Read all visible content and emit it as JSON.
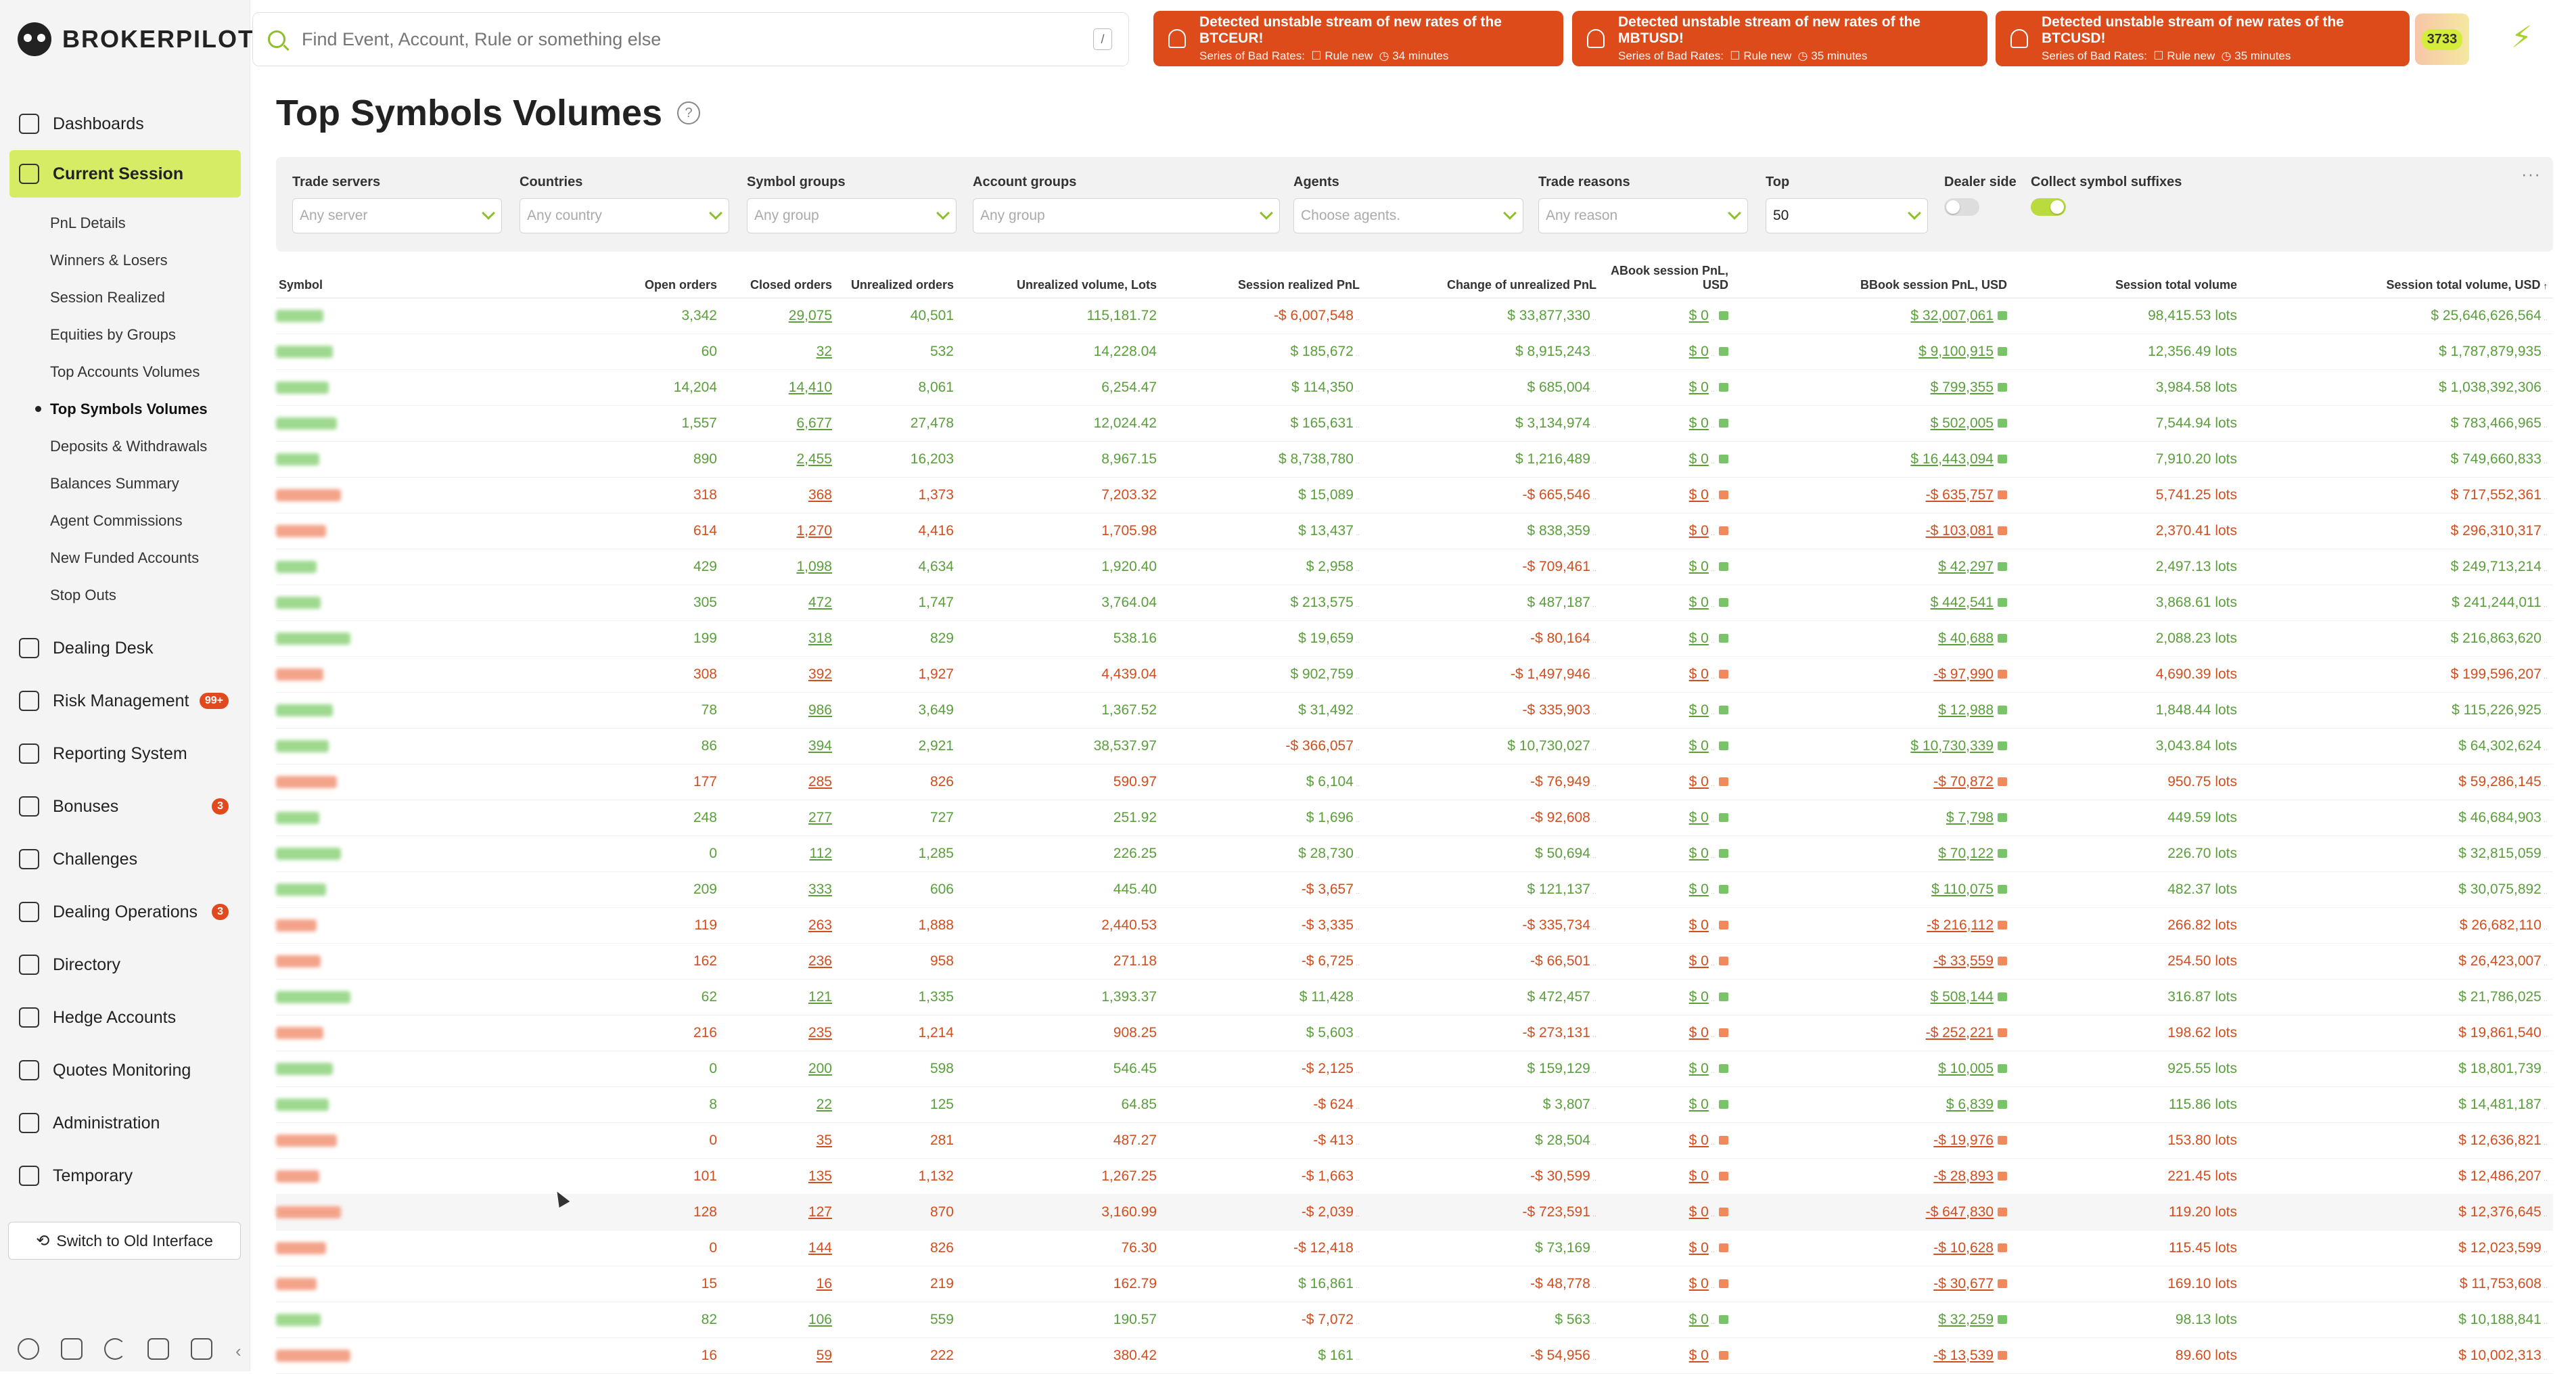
{
  "app": {
    "name": "BROKERPILOT"
  },
  "search": {
    "placeholder": "Find Event, Account, Rule or something else",
    "shortcut": "/"
  },
  "alerts": [
    {
      "title": "Detected unstable stream of new rates of the BTCEUR!",
      "series_label": "Series of Bad Rates:",
      "rule": "Rule new",
      "time": "34 minutes"
    },
    {
      "title": "Detected unstable stream of new rates of the MBTUSD!",
      "series_label": "Series of Bad Rates:",
      "rule": "Rule new",
      "time": "35 minutes"
    },
    {
      "title": "Detected unstable stream of new rates of the BTCUSD!",
      "series_label": "Series of Bad Rates:",
      "rule": "Rule new",
      "time": "35 minutes"
    }
  ],
  "counter": "3733",
  "nav": {
    "items": [
      {
        "label": "Dashboards",
        "icon": "dashboard-icon"
      },
      {
        "label": "Current Session",
        "icon": "session-icon",
        "active": true
      },
      {
        "label": "Dealing Desk",
        "icon": "desk-icon"
      },
      {
        "label": "Risk Management",
        "icon": "risk-icon",
        "badge": "99+"
      },
      {
        "label": "Reporting System",
        "icon": "report-icon"
      },
      {
        "label": "Bonuses",
        "icon": "bonus-icon",
        "badge": "3"
      },
      {
        "label": "Challenges",
        "icon": "flag-icon"
      },
      {
        "label": "Dealing Operations",
        "icon": "operations-icon",
        "badge": "3"
      },
      {
        "label": "Directory",
        "icon": "directory-icon"
      },
      {
        "label": "Hedge Accounts",
        "icon": "hedge-icon"
      },
      {
        "label": "Quotes Monitoring",
        "icon": "quotes-icon"
      },
      {
        "label": "Administration",
        "icon": "admin-icon"
      },
      {
        "label": "Temporary",
        "icon": "temporary-icon"
      }
    ],
    "subitems": [
      "PnL Details",
      "Winners & Losers",
      "Session Realized",
      "Equities by Groups",
      "Top Accounts Volumes",
      "Top Symbols Volumes",
      "Deposits & Withdrawals",
      "Balances Summary",
      "Agent Commissions",
      "New Funded Accounts",
      "Stop Outs"
    ],
    "active_sub": "Top Symbols Volumes",
    "switch_label": "Switch to Old Interface"
  },
  "page": {
    "title": "Top Symbols Volumes"
  },
  "filters": {
    "trade_servers": {
      "label": "Trade servers",
      "placeholder": "Any server"
    },
    "countries": {
      "label": "Countries",
      "placeholder": "Any country"
    },
    "symbol_groups": {
      "label": "Symbol groups",
      "placeholder": "Any group"
    },
    "account_groups": {
      "label": "Account groups",
      "placeholder": "Any group"
    },
    "agents": {
      "label": "Agents",
      "placeholder": "Choose agents."
    },
    "trade_reasons": {
      "label": "Trade reasons",
      "placeholder": "Any reason"
    },
    "top": {
      "label": "Top",
      "value": "50"
    },
    "dealer_side": {
      "label": "Dealer side",
      "on": false
    },
    "collect_suffixes": {
      "label": "Collect symbol suffixes",
      "on": true
    }
  },
  "table": {
    "columns": [
      "Symbol",
      "Open orders",
      "Closed orders",
      "Unrealized orders",
      "Unrealized volume, Lots",
      "Session realized PnL",
      "Change of unrealized PnL",
      "ABook session PnL, USD",
      "BBook session PnL, USD",
      "Session total volume",
      "Session total volume, USD"
    ],
    "sort_mark": "↑",
    "rows": [
      {
        "c": "g",
        "open": "3,342",
        "closed": "29,075",
        "unr": "40,501",
        "vol": "115,181.72",
        "rpnl": "-$ 6,007,548",
        "chg": "$ 33,877,330",
        "ab": "$ 0",
        "bb": "$ 32,007,061",
        "tv": "98,415.53 lots",
        "tvu": "$ 25,646,626,564"
      },
      {
        "c": "g",
        "open": "60",
        "closed": "32",
        "unr": "532",
        "vol": "14,228.04",
        "rpnl": "$ 185,672",
        "chg": "$ 8,915,243",
        "ab": "$ 0",
        "bb": "$ 9,100,915",
        "tv": "12,356.49 lots",
        "tvu": "$ 1,787,879,935"
      },
      {
        "c": "g",
        "open": "14,204",
        "closed": "14,410",
        "unr": "8,061",
        "vol": "6,254.47",
        "rpnl": "$ 114,350",
        "chg": "$ 685,004",
        "ab": "$ 0",
        "bb": "$ 799,355",
        "tv": "3,984.58 lots",
        "tvu": "$ 1,038,392,306"
      },
      {
        "c": "g",
        "open": "1,557",
        "closed": "6,677",
        "unr": "27,478",
        "vol": "12,024.42",
        "rpnl": "$ 165,631",
        "chg": "$ 3,134,974",
        "ab": "$ 0",
        "bb": "$ 502,005",
        "tv": "7,544.94 lots",
        "tvu": "$ 783,466,965"
      },
      {
        "c": "g",
        "open": "890",
        "closed": "2,455",
        "unr": "16,203",
        "vol": "8,967.15",
        "rpnl": "$ 8,738,780",
        "chg": "$ 1,216,489",
        "ab": "$ 0",
        "bb": "$ 16,443,094",
        "tv": "7,910.20 lots",
        "tvu": "$ 749,660,833"
      },
      {
        "c": "r",
        "open": "318",
        "closed": "368",
        "unr": "1,373",
        "vol": "7,203.32",
        "rpnl": "$ 15,089",
        "chg": "-$ 665,546",
        "ab": "$ 0",
        "bb": "-$ 635,757",
        "tv": "5,741.25 lots",
        "tvu": "$ 717,552,361"
      },
      {
        "c": "r",
        "open": "614",
        "closed": "1,270",
        "unr": "4,416",
        "vol": "1,705.98",
        "rpnl": "$ 13,437",
        "chg": "$ 838,359",
        "ab": "$ 0",
        "bb": "-$ 103,081",
        "tv": "2,370.41 lots",
        "tvu": "$ 296,310,317"
      },
      {
        "c": "g",
        "open": "429",
        "closed": "1,098",
        "unr": "4,634",
        "vol": "1,920.40",
        "rpnl": "$ 2,958",
        "chg": "-$ 709,461",
        "ab": "$ 0",
        "bb": "$ 42,297",
        "tv": "2,497.13 lots",
        "tvu": "$ 249,713,214"
      },
      {
        "c": "g",
        "open": "305",
        "closed": "472",
        "unr": "1,747",
        "vol": "3,764.04",
        "rpnl": "$ 213,575",
        "chg": "$ 487,187",
        "ab": "$ 0",
        "bb": "$ 442,541",
        "tv": "3,868.61 lots",
        "tvu": "$ 241,244,011"
      },
      {
        "c": "g",
        "open": "199",
        "closed": "318",
        "unr": "829",
        "vol": "538.16",
        "rpnl": "$ 19,659",
        "chg": "-$ 80,164",
        "ab": "$ 0",
        "bb": "$ 40,688",
        "tv": "2,088.23 lots",
        "tvu": "$ 216,863,620"
      },
      {
        "c": "r",
        "open": "308",
        "closed": "392",
        "unr": "1,927",
        "vol": "4,439.04",
        "rpnl": "$ 902,759",
        "chg": "-$ 1,497,946",
        "ab": "$ 0",
        "bb": "-$ 97,990",
        "tv": "4,690.39 lots",
        "tvu": "$ 199,596,207"
      },
      {
        "c": "g",
        "open": "78",
        "closed": "986",
        "unr": "3,649",
        "vol": "1,367.52",
        "rpnl": "$ 31,492",
        "chg": "-$ 335,903",
        "ab": "$ 0",
        "bb": "$ 12,988",
        "tv": "1,848.44 lots",
        "tvu": "$ 115,226,925"
      },
      {
        "c": "g",
        "open": "86",
        "closed": "394",
        "unr": "2,921",
        "vol": "38,537.97",
        "rpnl": "-$ 366,057",
        "chg": "$ 10,730,027",
        "ab": "$ 0",
        "bb": "$ 10,730,339",
        "tv": "3,043.84 lots",
        "tvu": "$ 64,302,624"
      },
      {
        "c": "r",
        "open": "177",
        "closed": "285",
        "unr": "826",
        "vol": "590.97",
        "rpnl": "$ 6,104",
        "chg": "-$ 76,949",
        "ab": "$ 0",
        "bb": "-$ 70,872",
        "tv": "950.75 lots",
        "tvu": "$ 59,286,145"
      },
      {
        "c": "g",
        "open": "248",
        "closed": "277",
        "unr": "727",
        "vol": "251.92",
        "rpnl": "$ 1,696",
        "chg": "-$ 92,608",
        "ab": "$ 0",
        "bb": "$ 7,798",
        "tv": "449.59 lots",
        "tvu": "$ 46,684,903"
      },
      {
        "c": "g",
        "open": "0",
        "closed": "112",
        "unr": "1,285",
        "vol": "226.25",
        "rpnl": "$ 28,730",
        "chg": "$ 50,694",
        "ab": "$ 0",
        "bb": "$ 70,122",
        "tv": "226.70 lots",
        "tvu": "$ 32,815,059"
      },
      {
        "c": "g",
        "open": "209",
        "closed": "333",
        "unr": "606",
        "vol": "445.40",
        "rpnl": "-$ 3,657",
        "chg": "$ 121,137",
        "ab": "$ 0",
        "bb": "$ 110,075",
        "tv": "482.37 lots",
        "tvu": "$ 30,075,892"
      },
      {
        "c": "r",
        "open": "119",
        "closed": "263",
        "unr": "1,888",
        "vol": "2,440.53",
        "rpnl": "-$ 3,335",
        "chg": "-$ 335,734",
        "ab": "$ 0",
        "bb": "-$ 216,112",
        "tv": "266.82 lots",
        "tvu": "$ 26,682,110"
      },
      {
        "c": "r",
        "open": "162",
        "closed": "236",
        "unr": "958",
        "vol": "271.18",
        "rpnl": "-$ 6,725",
        "chg": "-$ 66,501",
        "ab": "$ 0",
        "bb": "-$ 33,559",
        "tv": "254.50 lots",
        "tvu": "$ 26,423,007"
      },
      {
        "c": "g",
        "open": "62",
        "closed": "121",
        "unr": "1,335",
        "vol": "1,393.37",
        "rpnl": "$ 11,428",
        "chg": "$ 472,457",
        "ab": "$ 0",
        "bb": "$ 508,144",
        "tv": "316.87 lots",
        "tvu": "$ 21,786,025"
      },
      {
        "c": "r",
        "open": "216",
        "closed": "235",
        "unr": "1,214",
        "vol": "908.25",
        "rpnl": "$ 5,603",
        "chg": "-$ 273,131",
        "ab": "$ 0",
        "bb": "-$ 252,221",
        "tv": "198.62 lots",
        "tvu": "$ 19,861,540"
      },
      {
        "c": "g",
        "open": "0",
        "closed": "200",
        "unr": "598",
        "vol": "546.45",
        "rpnl": "-$ 2,125",
        "chg": "$ 159,129",
        "ab": "$ 0",
        "bb": "$ 10,005",
        "tv": "925.55 lots",
        "tvu": "$ 18,801,739"
      },
      {
        "c": "g",
        "open": "8",
        "closed": "22",
        "unr": "125",
        "vol": "64.85",
        "rpnl": "-$ 624",
        "chg": "$ 3,807",
        "ab": "$ 0",
        "bb": "$ 6,839",
        "tv": "115.86 lots",
        "tvu": "$ 14,481,187"
      },
      {
        "c": "r",
        "open": "0",
        "closed": "35",
        "unr": "281",
        "vol": "487.27",
        "rpnl": "-$ 413",
        "chg": "$ 28,504",
        "ab": "$ 0",
        "bb": "-$ 19,976",
        "tv": "153.80 lots",
        "tvu": "$ 12,636,821"
      },
      {
        "c": "r",
        "open": "101",
        "closed": "135",
        "unr": "1,132",
        "vol": "1,267.25",
        "rpnl": "-$ 1,663",
        "chg": "-$ 30,599",
        "ab": "$ 0",
        "bb": "-$ 28,893",
        "tv": "221.45 lots",
        "tvu": "$ 12,486,207"
      },
      {
        "c": "r",
        "open": "128",
        "closed": "127",
        "unr": "870",
        "vol": "3,160.99",
        "rpnl": "-$ 2,039",
        "chg": "-$ 723,591",
        "ab": "$ 0",
        "bb": "-$ 647,830",
        "tv": "119.20 lots",
        "tvu": "$ 12,376,645",
        "hover": true
      },
      {
        "c": "r",
        "open": "0",
        "closed": "144",
        "unr": "826",
        "vol": "76.30",
        "rpnl": "-$ 12,418",
        "chg": "$ 73,169",
        "ab": "$ 0",
        "bb": "-$ 10,628",
        "tv": "115.45 lots",
        "tvu": "$ 12,023,599"
      },
      {
        "c": "r",
        "open": "15",
        "closed": "16",
        "unr": "219",
        "vol": "162.79",
        "rpnl": "$ 16,861",
        "chg": "-$ 48,778",
        "ab": "$ 0",
        "bb": "-$ 30,677",
        "tv": "169.10 lots",
        "tvu": "$ 11,753,608"
      },
      {
        "c": "g",
        "open": "82",
        "closed": "106",
        "unr": "559",
        "vol": "190.57",
        "rpnl": "-$ 7,072",
        "chg": "$ 563",
        "ab": "$ 0",
        "bb": "$ 32,259",
        "tv": "98.13 lots",
        "tvu": "$ 10,188,841"
      },
      {
        "c": "r",
        "open": "16",
        "closed": "59",
        "unr": "222",
        "vol": "380.42",
        "rpnl": "$ 161",
        "chg": "-$ 54,956",
        "ab": "$ 0",
        "bb": "-$ 13,539",
        "tv": "89.60 lots",
        "tvu": "$ 10,002,313"
      }
    ]
  }
}
